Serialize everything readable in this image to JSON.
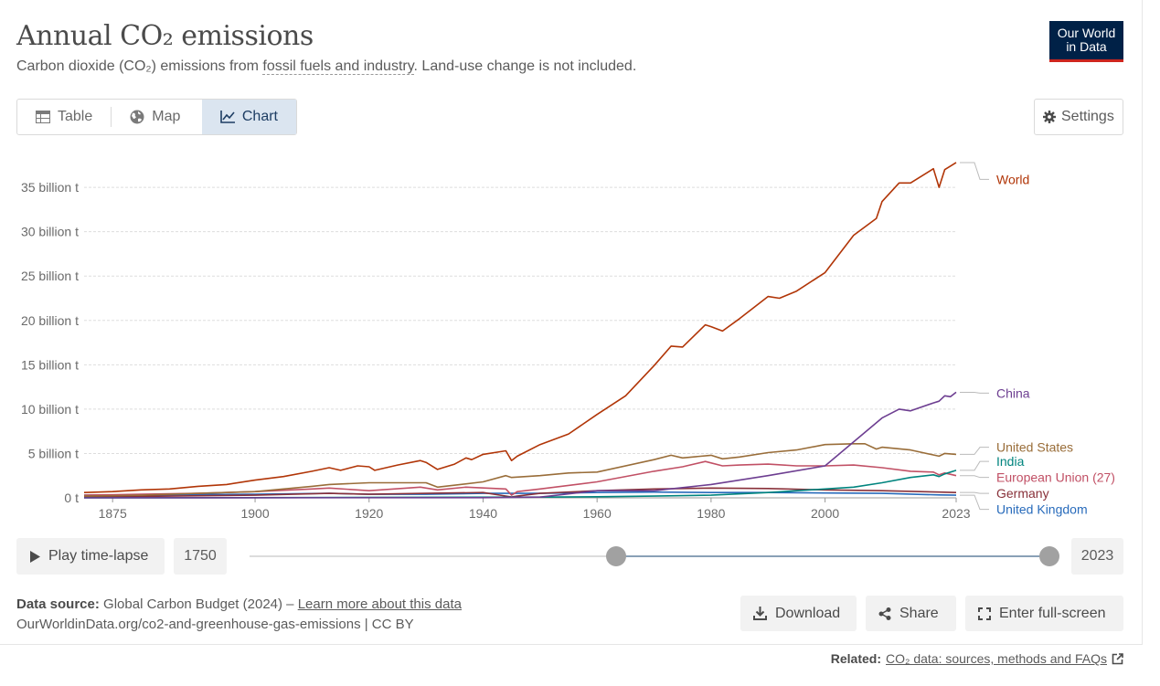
{
  "header": {
    "title": "Annual CO₂ emissions",
    "subtitle_pre": "Carbon dioxide (CO₂) emissions from ",
    "subtitle_link": "fossil fuels and industry",
    "subtitle_post": ". Land-use change is not included.",
    "logo_line1": "Our World",
    "logo_line2": "in Data"
  },
  "tabs": [
    {
      "label": "Table",
      "icon": "table-icon"
    },
    {
      "label": "Map",
      "icon": "globe-icon"
    },
    {
      "label": "Chart",
      "icon": "line-chart-icon",
      "active": true
    }
  ],
  "settings_label": "Settings",
  "timeline": {
    "play_label": "Play time-lapse",
    "start_year": "1750",
    "end_year": "2023",
    "start_fraction": 0.458,
    "end_fraction": 1.0
  },
  "footer": {
    "source_label": "Data source:",
    "source_text": " Global Carbon Budget (2024) – ",
    "learn_more": "Learn more about this data",
    "url_line": "OurWorldinData.org/co2-and-greenhouse-gas-emissions | CC BY",
    "download_label": "Download",
    "share_label": "Share",
    "fullscreen_label": "Enter full-screen",
    "related_label": "Related:",
    "related_link": "CO₂ data: sources, methods and FAQs"
  },
  "chart_data": {
    "type": "line",
    "title": "Annual CO₂ emissions",
    "xlim": [
      1870,
      2023
    ],
    "ylim": [
      0,
      38000000000
    ],
    "xticks": [
      "1875",
      "1900",
      "1920",
      "1940",
      "1960",
      "1980",
      "2000",
      "2023"
    ],
    "xtick_values": [
      1875,
      1900,
      1920,
      1940,
      1960,
      1980,
      2000,
      2023
    ],
    "yticks": [
      "0 t",
      "5 billion t",
      "10 billion t",
      "15 billion t",
      "20 billion t",
      "25 billion t",
      "30 billion t",
      "35 billion t"
    ],
    "ytick_values": [
      0,
      5,
      10,
      15,
      20,
      25,
      30,
      35
    ],
    "y_unit_note": "values in billion tonnes",
    "grid": "horizontal dotted",
    "legend": "labels at line ends (right)",
    "series": [
      {
        "name": "World",
        "color": "#b13507",
        "label_y": 35.9,
        "x": [
          1870,
          1875,
          1880,
          1885,
          1890,
          1895,
          1900,
          1905,
          1910,
          1913,
          1915,
          1918,
          1920,
          1921,
          1925,
          1929,
          1930,
          1932,
          1935,
          1937,
          1938,
          1940,
          1943,
          1944,
          1945,
          1946,
          1950,
          1955,
          1960,
          1965,
          1970,
          1973,
          1975,
          1979,
          1980,
          1982,
          1985,
          1990,
          1992,
          1995,
          2000,
          2005,
          2009,
          2010,
          2013,
          2015,
          2019,
          2020,
          2021,
          2022,
          2023
        ],
        "y": [
          0.6,
          0.7,
          0.9,
          1.0,
          1.3,
          1.5,
          2.0,
          2.4,
          3.0,
          3.4,
          3.1,
          3.6,
          3.5,
          3.1,
          3.7,
          4.2,
          4.0,
          3.2,
          3.8,
          4.5,
          4.3,
          4.9,
          5.2,
          5.3,
          4.2,
          4.7,
          6.0,
          7.2,
          9.4,
          11.5,
          14.9,
          17.1,
          17.0,
          19.5,
          19.3,
          18.8,
          20.2,
          22.7,
          22.5,
          23.3,
          25.4,
          29.6,
          31.5,
          33.4,
          35.5,
          35.5,
          37.1,
          35.0,
          37.0,
          37.4,
          37.8
        ]
      },
      {
        "name": "China",
        "color": "#6d3e91",
        "label_y": 11.8,
        "x": [
          1870,
          1940,
          1950,
          1960,
          1970,
          1980,
          1990,
          2000,
          2005,
          2010,
          2013,
          2015,
          2019,
          2020,
          2021,
          2022,
          2023
        ],
        "y": [
          0.0,
          0.02,
          0.08,
          0.8,
          0.8,
          1.5,
          2.5,
          3.6,
          6.3,
          9.0,
          10.0,
          9.8,
          10.7,
          10.9,
          11.5,
          11.4,
          11.9
        ]
      },
      {
        "name": "United States",
        "color": "#996d39",
        "label_y": 5.7,
        "x": [
          1870,
          1880,
          1890,
          1900,
          1910,
          1913,
          1920,
          1925,
          1930,
          1932,
          1940,
          1944,
          1945,
          1950,
          1955,
          1960,
          1970,
          1973,
          1975,
          1980,
          1982,
          1985,
          1990,
          1995,
          2000,
          2005,
          2007,
          2009,
          2010,
          2015,
          2020,
          2021,
          2023
        ],
        "y": [
          0.2,
          0.3,
          0.5,
          0.7,
          1.3,
          1.5,
          1.7,
          1.7,
          1.7,
          1.2,
          1.8,
          2.5,
          2.3,
          2.5,
          2.8,
          2.9,
          4.3,
          4.8,
          4.5,
          4.8,
          4.4,
          4.6,
          5.1,
          5.4,
          6.0,
          6.1,
          6.1,
          5.5,
          5.7,
          5.4,
          4.7,
          5.0,
          4.9
        ]
      },
      {
        "name": "India",
        "color": "#00847e",
        "label_y": 4.1,
        "x": [
          1870,
          1900,
          1950,
          1960,
          1970,
          1980,
          1990,
          2000,
          2005,
          2010,
          2015,
          2019,
          2020,
          2021,
          2023
        ],
        "y": [
          0.0,
          0.02,
          0.08,
          0.12,
          0.2,
          0.3,
          0.6,
          1.0,
          1.2,
          1.7,
          2.3,
          2.6,
          2.4,
          2.7,
          3.1
        ]
      },
      {
        "name": "European Union (27)",
        "color": "#c15065",
        "label_y": 2.3,
        "x": [
          1870,
          1880,
          1890,
          1900,
          1910,
          1913,
          1920,
          1929,
          1932,
          1937,
          1944,
          1945,
          1946,
          1950,
          1960,
          1970,
          1975,
          1979,
          1982,
          1985,
          1990,
          1995,
          2000,
          2005,
          2010,
          2015,
          2019,
          2020,
          2021,
          2023
        ],
        "y": [
          0.3,
          0.4,
          0.5,
          0.7,
          1.0,
          1.1,
          0.8,
          1.2,
          0.9,
          1.2,
          1.0,
          0.3,
          0.7,
          1.0,
          1.8,
          3.0,
          3.5,
          4.1,
          3.6,
          3.7,
          3.8,
          3.6,
          3.6,
          3.7,
          3.4,
          3.0,
          2.9,
          2.6,
          2.8,
          2.5
        ]
      },
      {
        "name": "Germany",
        "color": "#883039",
        "label_y": 0.5,
        "x": [
          1870,
          1900,
          1913,
          1920,
          1930,
          1940,
          1945,
          1946,
          1950,
          1960,
          1970,
          1980,
          1990,
          2000,
          2010,
          2020,
          2023
        ],
        "y": [
          0.1,
          0.3,
          0.5,
          0.4,
          0.5,
          0.6,
          0.1,
          0.2,
          0.5,
          0.8,
          1.0,
          1.1,
          1.05,
          0.9,
          0.8,
          0.65,
          0.6
        ]
      },
      {
        "name": "United Kingdom",
        "color": "#286bbb",
        "label_y": -1.3,
        "x": [
          1870,
          1900,
          1913,
          1920,
          1930,
          1940,
          1950,
          1960,
          1970,
          1980,
          1990,
          2000,
          2010,
          2020,
          2023
        ],
        "y": [
          0.3,
          0.4,
          0.5,
          0.4,
          0.4,
          0.5,
          0.5,
          0.6,
          0.65,
          0.6,
          0.6,
          0.55,
          0.5,
          0.33,
          0.3
        ]
      }
    ]
  }
}
